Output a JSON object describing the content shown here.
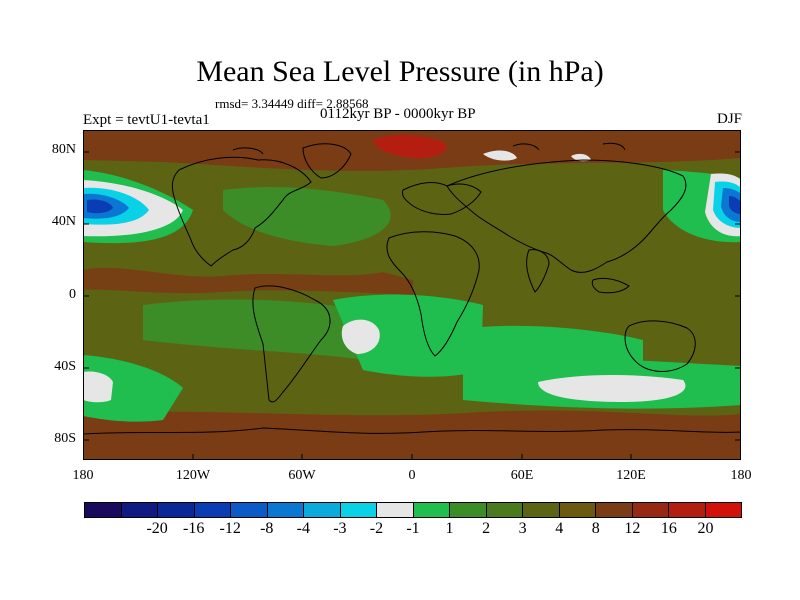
{
  "title": "Mean Sea Level Pressure (in hPa)",
  "stats": "rmsd= 3.34449  diff= 2.88568",
  "period": "0112kyr BP - 0000kyr BP",
  "experiment": "Expt = tevtU1-tevta1",
  "season": "DJF",
  "y_axis_labels": [
    "80N",
    "40N",
    "0",
    "40S",
    "80S"
  ],
  "x_axis_labels": [
    "180",
    "120W",
    "60W",
    "0",
    "60E",
    "120E",
    "180"
  ],
  "colorbar": {
    "colors": [
      "#1a0a5e",
      "#101a82",
      "#0a2896",
      "#0a3cb4",
      "#0a5ac8",
      "#0a78d2",
      "#0aaadc",
      "#0ad2e6",
      "#e6e6e6",
      "#1fbe4f",
      "#3c8c28",
      "#4a7a1e",
      "#5c6414",
      "#6b5a10",
      "#7a3c14",
      "#962814",
      "#b41e10",
      "#d2120a"
    ],
    "labels": [
      "-20",
      "-16",
      "-12",
      "-8",
      "-4",
      "-3",
      "-2",
      "-1",
      "1",
      "2",
      "3",
      "4",
      "8",
      "12",
      "16",
      "20"
    ]
  },
  "legend_colors": {
    "base": "#4a7a1e",
    "dark": "#5c6414",
    "brown": "#7a3c14",
    "red": "#b41e10",
    "lightgreen": "#3c8c28",
    "green": "#1fbe4f",
    "white": "#e6e6e6",
    "cyan": "#0ad2e6",
    "blue": "#0a78d2",
    "deepblue": "#0a3cb4"
  }
}
